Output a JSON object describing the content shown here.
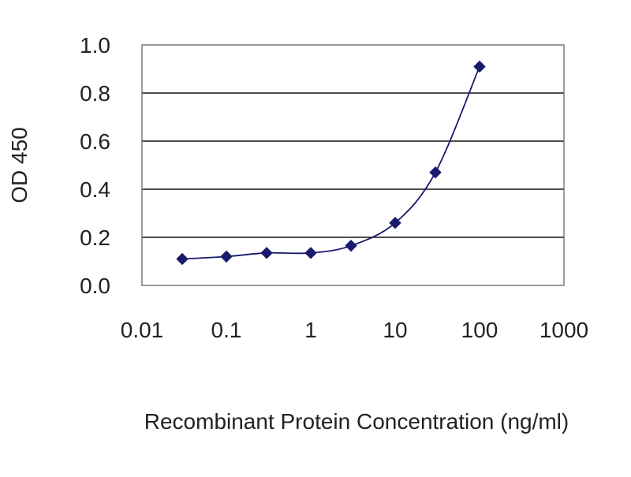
{
  "chart_data": {
    "type": "line",
    "title": "",
    "xlabel": "Recombinant Protein Concentration (ng/ml)",
    "ylabel": "OD 450",
    "x_scale": "log",
    "xlim": [
      0.01,
      1000
    ],
    "ylim": [
      0.0,
      1.0
    ],
    "x_tick_labels": [
      "0.01",
      "0.1",
      "1",
      "10",
      "100",
      "1000"
    ],
    "x_tick_values": [
      0.01,
      0.1,
      1,
      10,
      100,
      1000
    ],
    "y_tick_labels": [
      "0.0",
      "0.2",
      "0.4",
      "0.6",
      "0.8",
      "1.0"
    ],
    "y_tick_values": [
      0.0,
      0.2,
      0.4,
      0.6,
      0.8,
      1.0
    ],
    "grid": "horizontal",
    "legend": "none",
    "series": [
      {
        "x": [
          0.03,
          0.1,
          0.3,
          1,
          3,
          10,
          30,
          100
        ],
        "y": [
          0.11,
          0.12,
          0.135,
          0.135,
          0.165,
          0.26,
          0.47,
          0.91
        ],
        "color": "#1a1a6e",
        "marker": "diamond"
      }
    ]
  }
}
